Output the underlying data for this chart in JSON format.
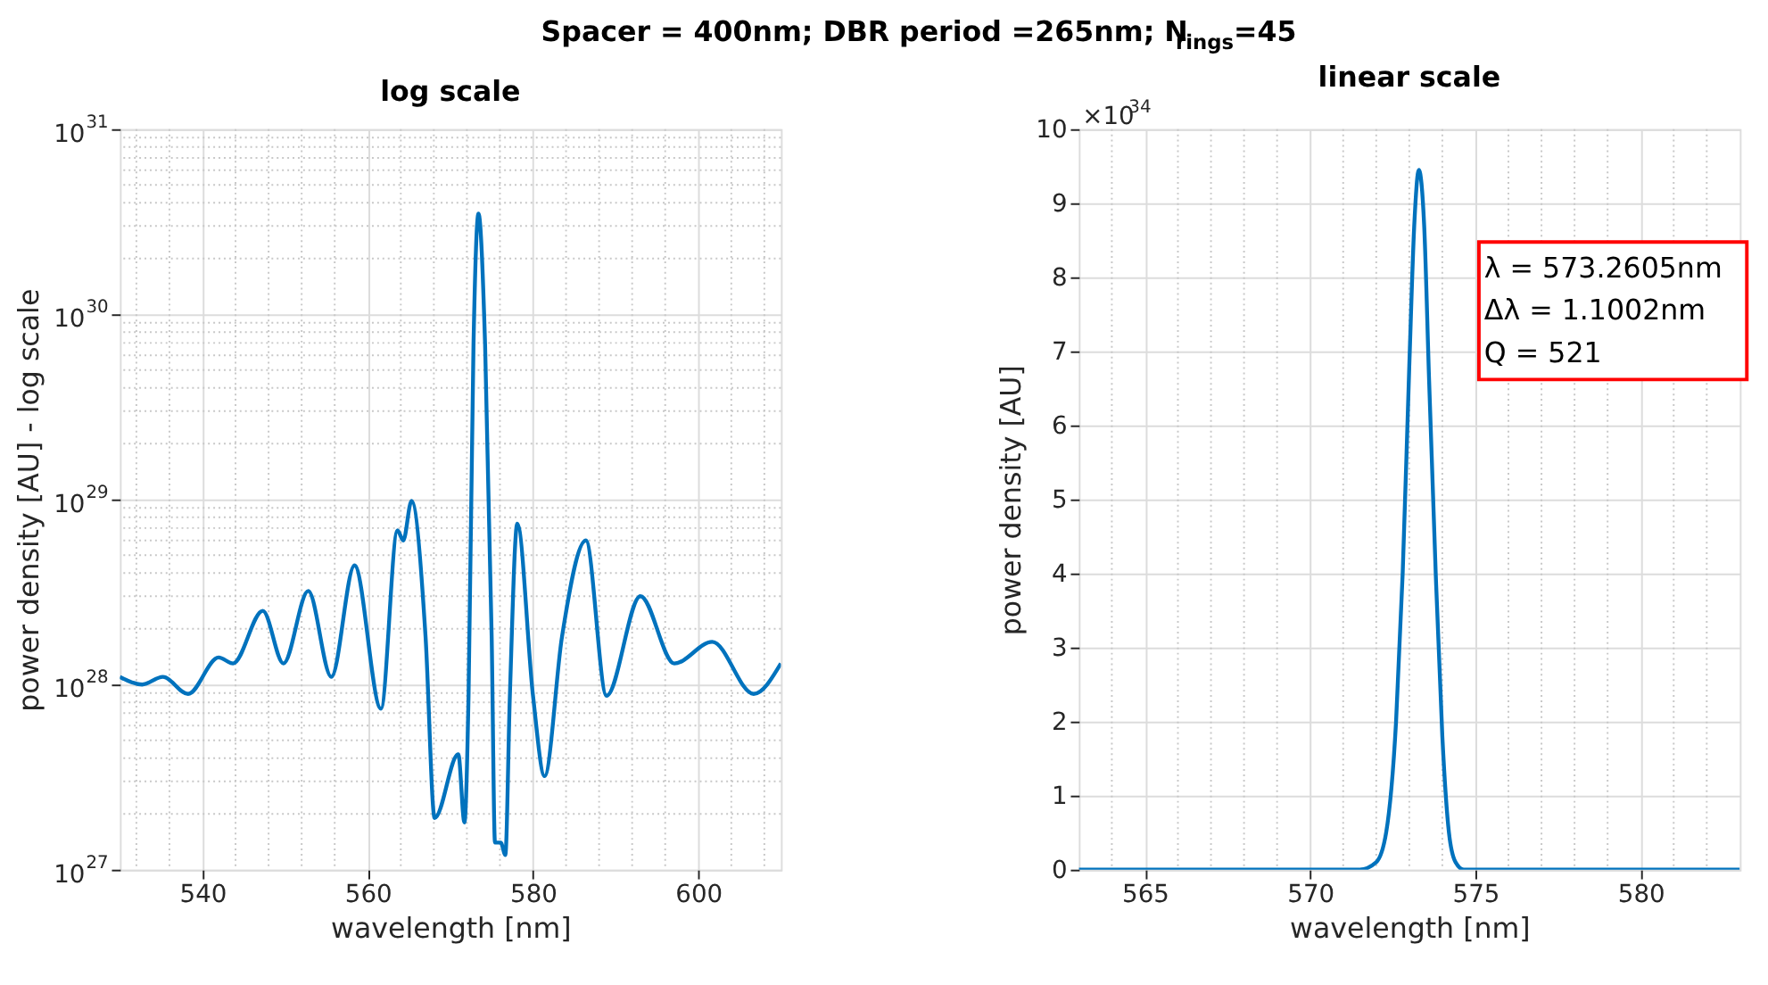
{
  "chart_data": [
    {
      "type": "line",
      "title": "log scale",
      "xlabel": "wavelength [nm]",
      "ylabel": "power density [AU] - log scale",
      "log": true,
      "grid": true,
      "annotations": [
        "Spacer = 400nm;  DBR period =265nm;  N$_{rings}$=45"
      ],
      "xlim": [
        530,
        610
      ],
      "xticks": [
        540,
        560,
        580,
        600
      ],
      "ylim": [
        1e+27,
        1e+31
      ],
      "yticks": [
        {
          "value": 1e+27,
          "label": "10$^{27}$"
        },
        {
          "value": 1e+28,
          "label": "10$^{28}$"
        },
        {
          "value": 1e+29,
          "label": "10$^{29}$"
        },
        {
          "value": 1e+30,
          "label": "10$^{30}$"
        },
        {
          "value": 1e+31,
          "label": "10$^{31}$"
        }
      ],
      "x": [
        530,
        532.7,
        535.2,
        538.25,
        541.95,
        543.7,
        547.3,
        549.8,
        552.8,
        555.6,
        558.4,
        561.6,
        563.6,
        564.3,
        565.3,
        567,
        568.1,
        570.96,
        571.7,
        572.2,
        572.8,
        573.4,
        574.2,
        575.0,
        575.4,
        576.1,
        576.65,
        577.2,
        578.1,
        580,
        581.4,
        583.5,
        586.4,
        588.9,
        593.0,
        597.1,
        601.7,
        606.7,
        610
      ],
      "series": [
        {
          "color": "#0072bd",
          "values": [
            1.1e+28,
            1e+28,
            1.1e+28,
            8.9e+27,
            1.4e+28,
            1.3e+28,
            2.5e+28,
            1.3e+28,
            3.2e+28,
            1.1e+28,
            4.4e+28,
            7.4e+27,
            6.8e+28,
            6e+28,
            9.8e+28,
            1.8e+28,
            1.9e+27,
            4.2e+27,
            1.8e+27,
            8.7e+27,
            6.9e+29,
            3.5e+30,
            6.9e+29,
            1.8e+28,
            1.4e+27,
            1.4e+27,
            1.2e+27,
            8.7e+27,
            7.4e+28,
            8.7e+27,
            3.2e+27,
            1.8e+28,
            6e+28,
            8.7e+27,
            3e+28,
            1.3e+28,
            1.7e+28,
            8.9e+27,
            1.3e+28
          ]
        }
      ]
    },
    {
      "type": "line",
      "title": "linear scale",
      "xlabel": "wavelength [nm]",
      "ylabel": "power density [AU]",
      "grid": true,
      "xlim": [
        563,
        583
      ],
      "xticks": [
        565,
        570,
        575,
        580
      ],
      "ylim": [
        0,
        10
      ],
      "yticks": [
        0,
        1,
        2,
        3,
        4,
        5,
        6,
        7,
        8,
        9,
        10
      ],
      "x": [
        563,
        571.5,
        572.0,
        572.3,
        572.6,
        572.8,
        573.0,
        573.15,
        573.29,
        573.45,
        573.6,
        573.8,
        574.0,
        574.2,
        574.4,
        574.65,
        583
      ],
      "series": [
        {
          "color": "#0072bd",
          "values": [
            0,
            0,
            0.1,
            0.5,
            2.0,
            4.0,
            6.8,
            8.7,
            9.45,
            8.7,
            6.6,
            4.0,
            1.8,
            0.5,
            0.1,
            0,
            0
          ]
        }
      ],
      "annotations": [
        "×10$^{34}$",
        "λ = 573.2605nm",
        "Δλ = 1.1002nm",
        "Q = 521"
      ]
    }
  ]
}
